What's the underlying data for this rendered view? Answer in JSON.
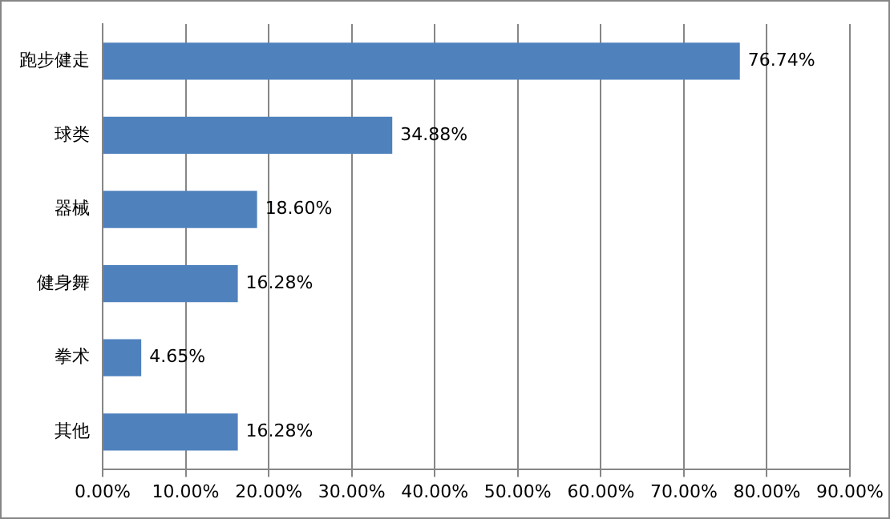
{
  "chart_data": {
    "type": "bar",
    "orientation": "horizontal",
    "categories": [
      "跑步健走",
      "球类",
      "器械",
      "健身舞",
      "拳术",
      "其他"
    ],
    "values": [
      76.74,
      34.88,
      18.6,
      16.28,
      4.65,
      16.28
    ],
    "value_labels": [
      "76.74%",
      "34.88%",
      "18.60%",
      "16.28%",
      "4.65%",
      "16.28%"
    ],
    "color": "#4f81bd",
    "xlim": [
      0,
      90
    ],
    "xticks": [
      {
        "value": 0,
        "label": "0.00%"
      },
      {
        "value": 10,
        "label": "10.00%"
      },
      {
        "value": 20,
        "label": "20.00%"
      },
      {
        "value": 30,
        "label": "30.00%"
      },
      {
        "value": 40,
        "label": "40.00%"
      },
      {
        "value": 50,
        "label": "50.00%"
      },
      {
        "value": 60,
        "label": "60.00%"
      },
      {
        "value": 70,
        "label": "70.00%"
      },
      {
        "value": 80,
        "label": "80.00%"
      },
      {
        "value": 90,
        "label": "90.00%"
      }
    ],
    "grid": "x",
    "legend": false
  }
}
